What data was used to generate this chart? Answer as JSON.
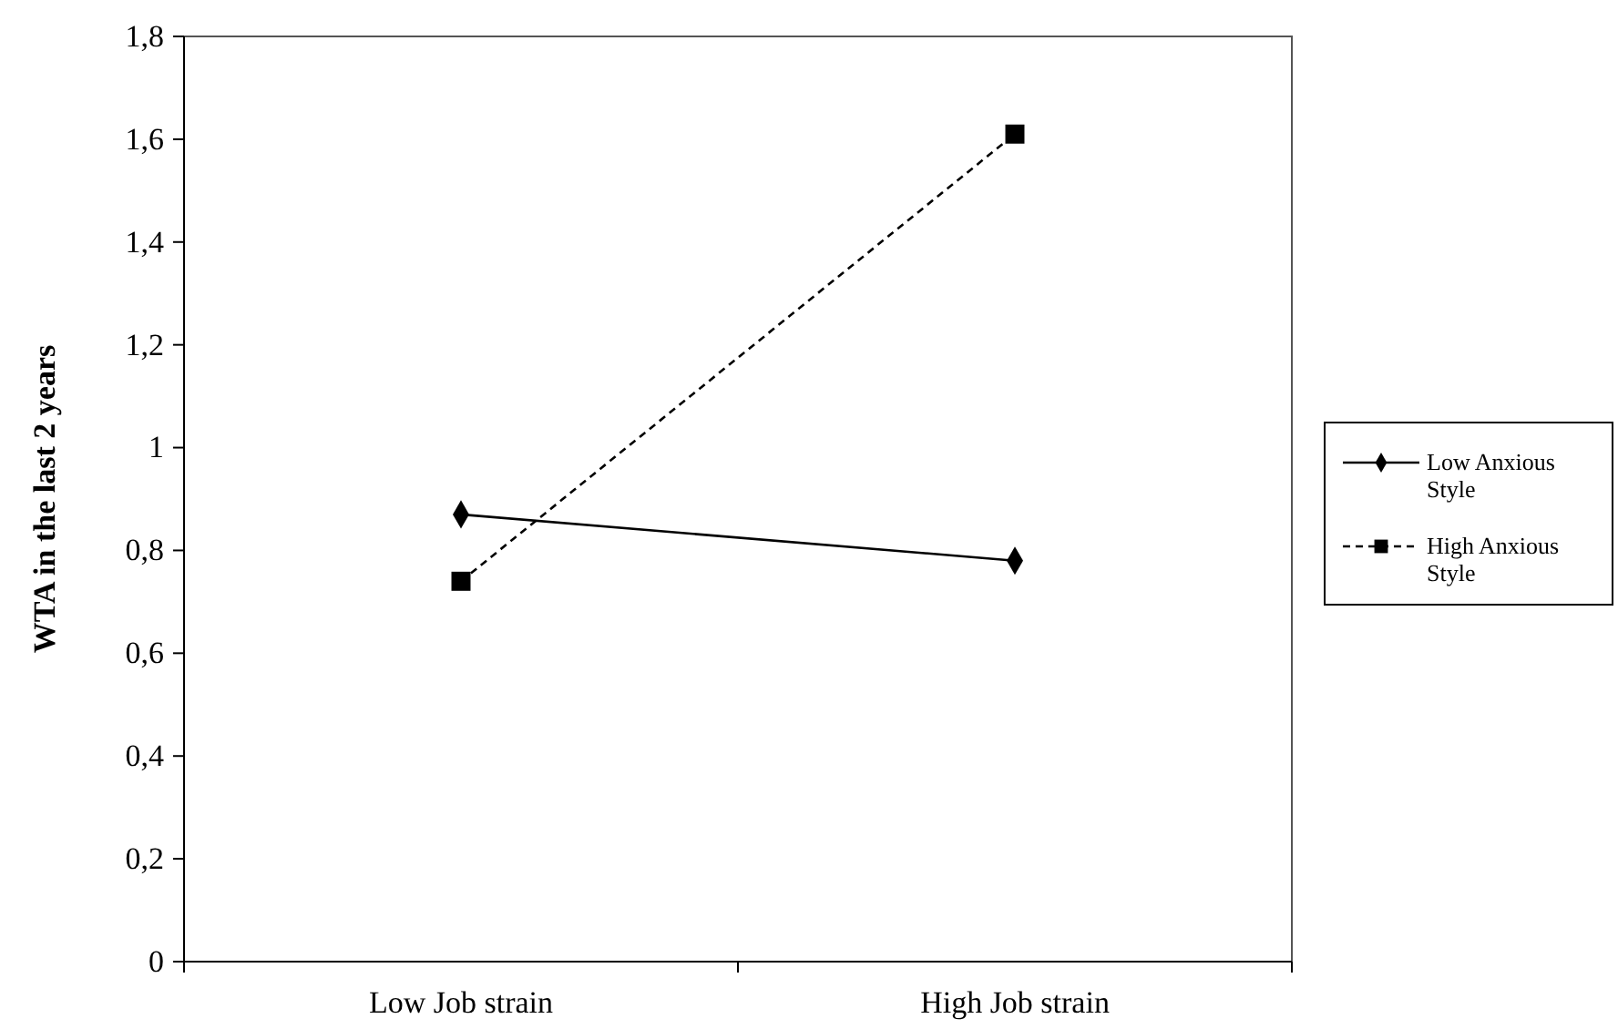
{
  "chart_data": {
    "type": "line",
    "ylabel": "WTA in the last 2 years",
    "categories": [
      "Low Job strain",
      "High Job strain"
    ],
    "series": [
      {
        "name": "Low Anxious Style",
        "color": "#000000",
        "values": [
          0.87,
          0.78
        ],
        "marker": "diamond",
        "line_style": "solid"
      },
      {
        "name": "High Anxious Style",
        "color": "#000000",
        "values": [
          0.74,
          1.61
        ],
        "marker": "square",
        "line_style": "dashed"
      }
    ],
    "ylim": [
      0,
      1.8
    ],
    "yticks": [
      0,
      {
        "value": 0.2,
        "label": "0,2"
      },
      {
        "value": 0.4,
        "label": "0,4"
      },
      {
        "value": 0.6,
        "label": "0,6"
      },
      {
        "value": 0.8,
        "label": "0,8"
      },
      1,
      {
        "value": 1.2,
        "label": "1,2"
      },
      {
        "value": 1.4,
        "label": "1,4"
      },
      {
        "value": 1.6,
        "label": "1,6"
      },
      {
        "value": 1.8,
        "label": "1,8"
      }
    ],
    "grid": false,
    "legend": "right"
  }
}
